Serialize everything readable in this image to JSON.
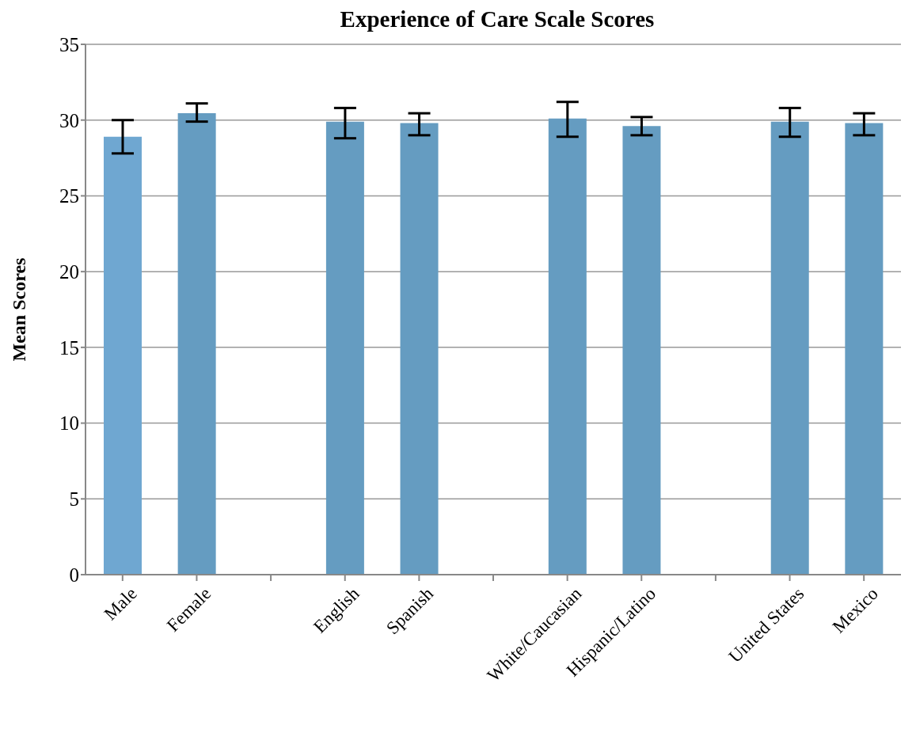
{
  "chart_data": {
    "type": "bar",
    "title": "Experience of Care Scale Scores",
    "ylabel": "Mean Scores",
    "categories": [
      "Male",
      "Female",
      null,
      "English",
      "Spanish",
      null,
      "White/Caucasian",
      "Hispanic/Latino",
      null,
      "United States",
      "Mexico"
    ],
    "values": [
      28.9,
      30.45,
      null,
      29.9,
      29.8,
      null,
      30.1,
      29.6,
      null,
      29.9,
      29.8
    ],
    "colors": [
      "#6fa7d1",
      "#659cc1",
      null,
      "#659cc1",
      "#659cc1",
      null,
      "#659cc1",
      "#659cc1",
      null,
      "#659cc1",
      "#659cc1"
    ],
    "errors": [
      [
        27.8,
        30.0
      ],
      [
        29.9,
        31.1
      ],
      null,
      [
        28.8,
        30.8
      ],
      [
        29.0,
        30.45
      ],
      null,
      [
        28.9,
        31.2
      ],
      [
        29.0,
        30.2
      ],
      null,
      [
        28.9,
        30.8
      ],
      [
        29.0,
        30.45
      ]
    ],
    "ylim": [
      0,
      35
    ],
    "yticks": [
      0,
      5,
      10,
      15,
      20,
      25,
      30,
      35
    ],
    "grid": "y",
    "legend": false
  }
}
